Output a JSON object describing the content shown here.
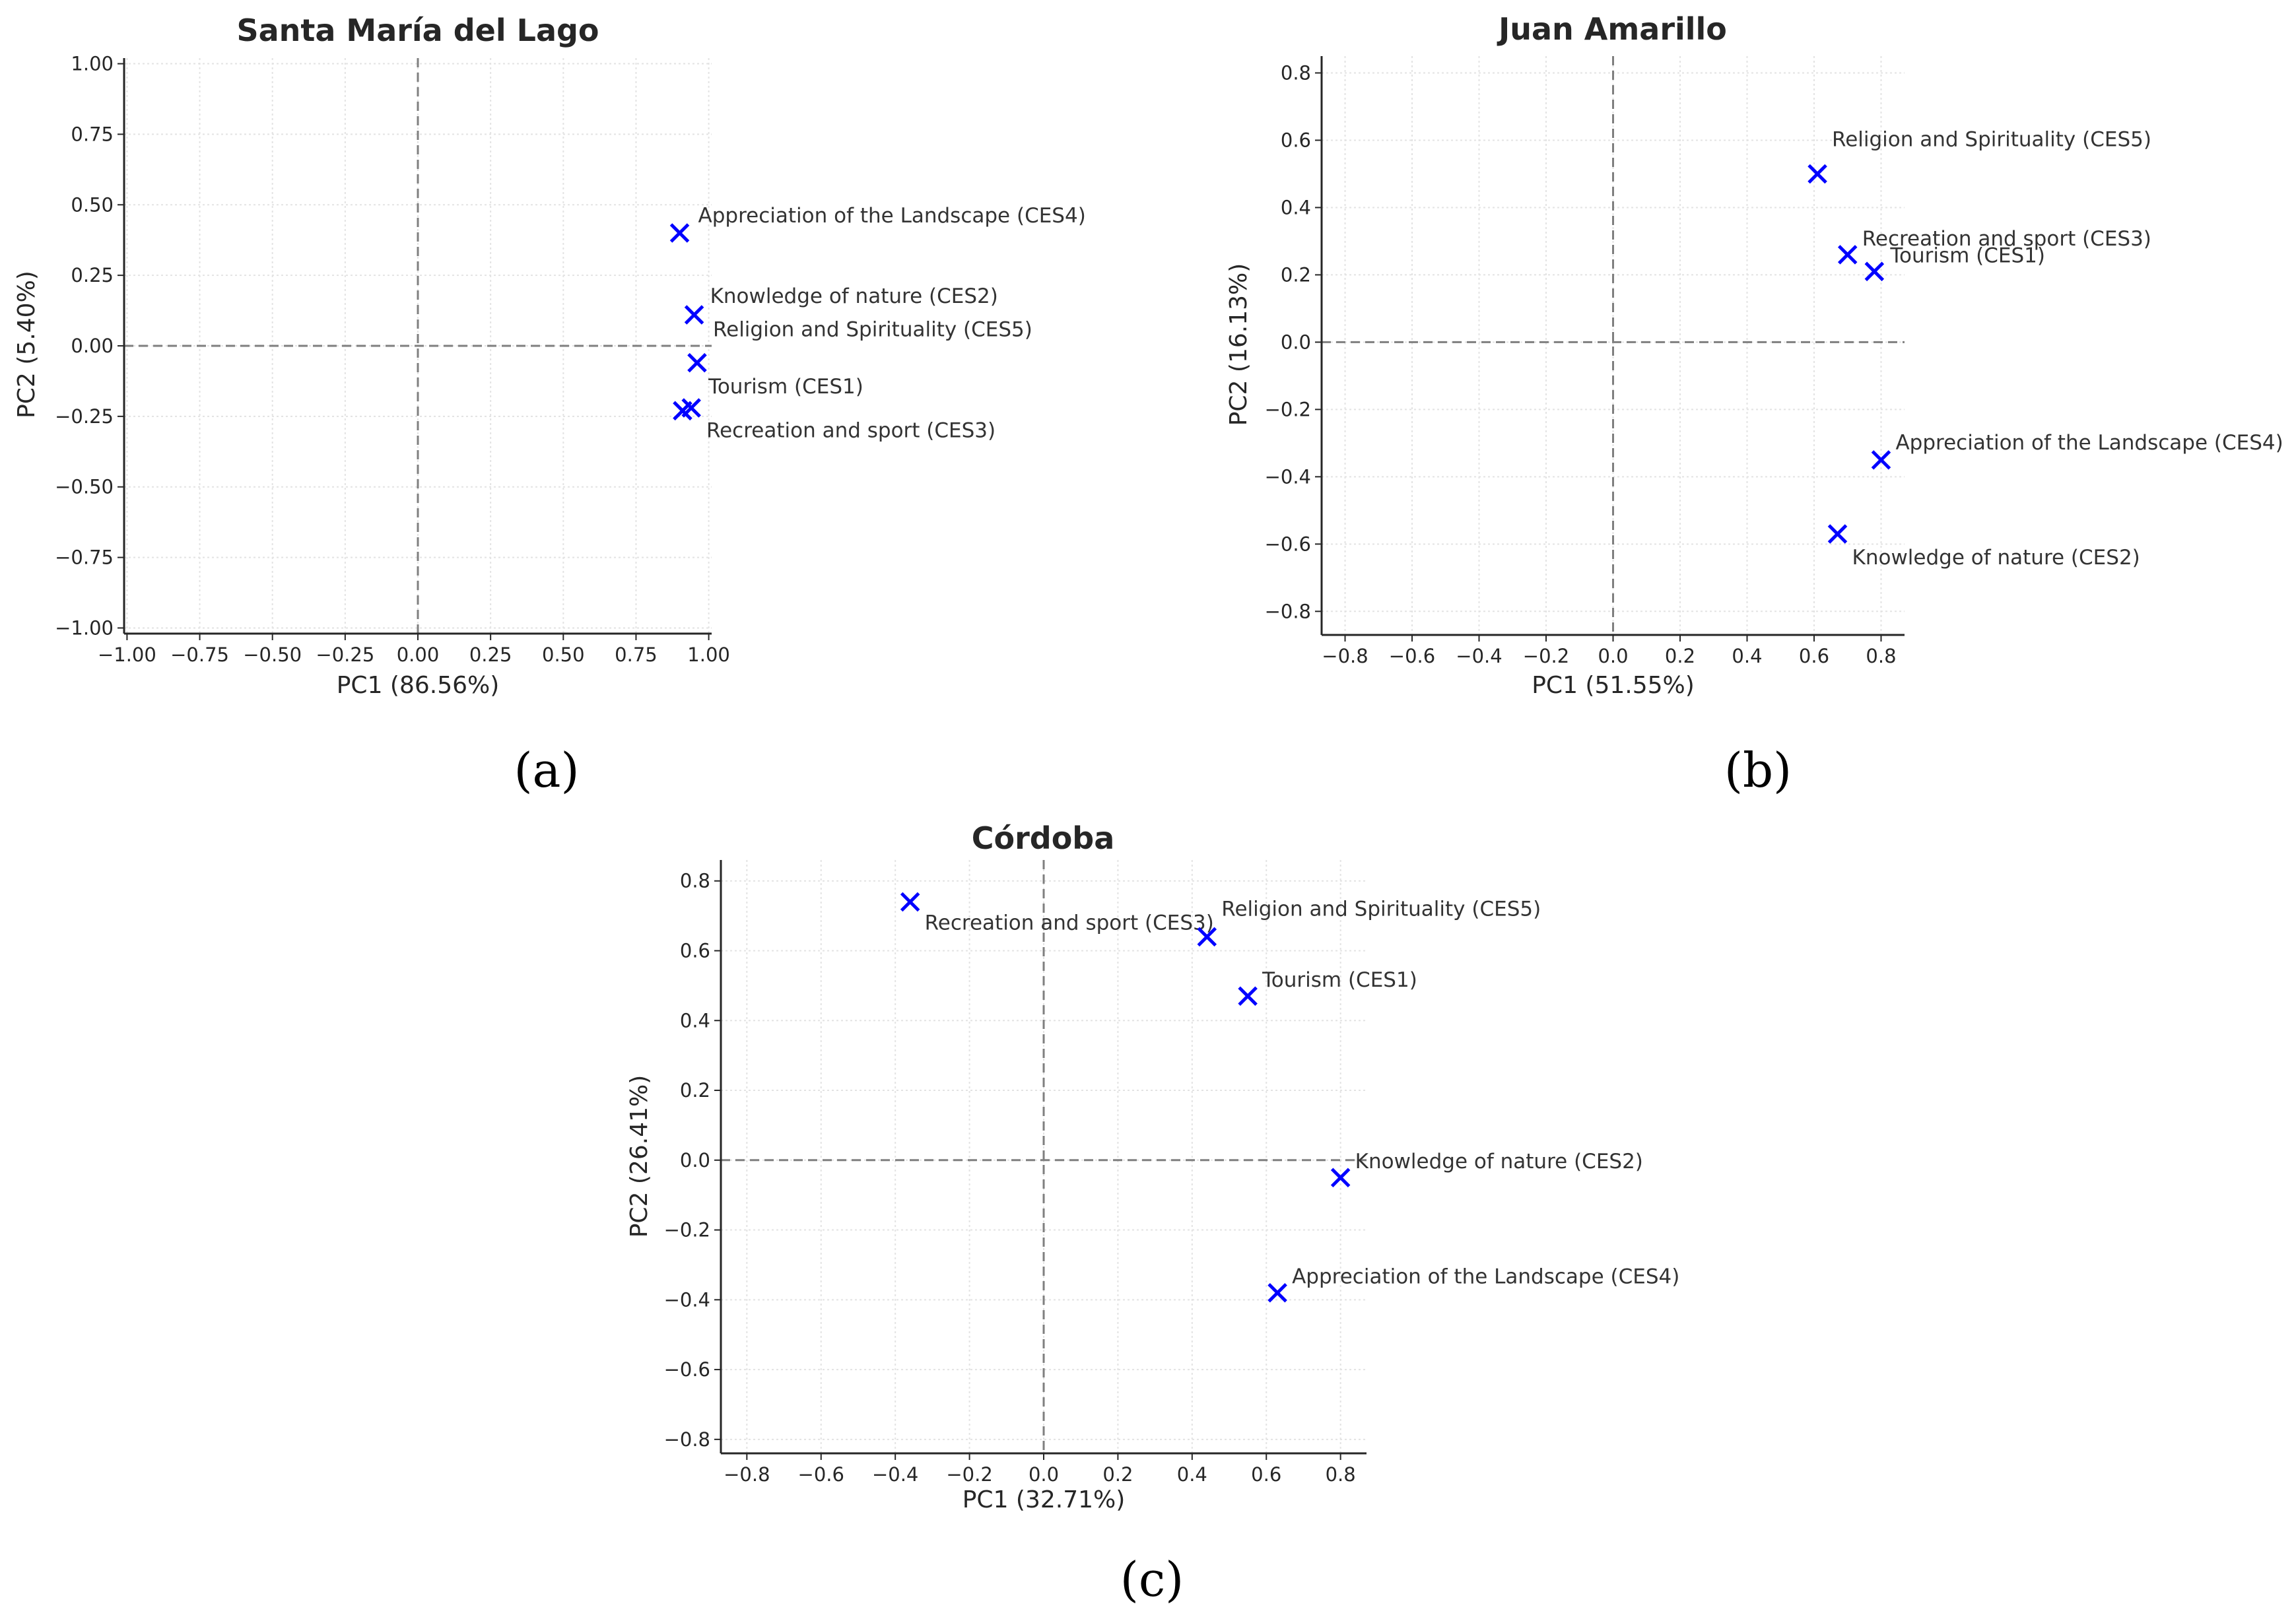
{
  "chart_data": [
    {
      "type": "scatter",
      "panel": "(a)",
      "title": "Santa María del Lago",
      "xlabel": "PC1 (86.56%)",
      "ylabel": "PC2 (5.40%)",
      "xlim": [
        -1.0,
        1.0
      ],
      "ylim": [
        -1.0,
        1.0
      ],
      "xticks": [
        "−1.00",
        "−0.75",
        "−0.50",
        "−0.25",
        "0.00",
        "0.25",
        "0.50",
        "0.75",
        "1.00"
      ],
      "yticks": [
        "1.00",
        "0.75",
        "0.50",
        "0.25",
        "0.00",
        "−0.25",
        "−0.50",
        "−0.75",
        "−1.00"
      ],
      "grid": true,
      "marker": "x",
      "marker_color": "#0000ff",
      "points": [
        {
          "label": "Appreciation of the Landscape (CES4)",
          "x": 0.9,
          "y": 0.4
        },
        {
          "label": "Knowledge of nature (CES2)",
          "x": 0.95,
          "y": 0.11
        },
        {
          "label": "Religion and Spirituality (CES5)",
          "x": 0.96,
          "y": -0.06
        },
        {
          "label": "Tourism (CES1)",
          "x": 0.94,
          "y": -0.22
        },
        {
          "label": "Recreation and sport (CES3)",
          "x": 0.91,
          "y": -0.23
        }
      ]
    },
    {
      "type": "scatter",
      "panel": "(b)",
      "title": "Juan Amarillo",
      "xlabel": "PC1 (51.55%)",
      "ylabel": "PC2 (16.13%)",
      "xlim": [
        -0.85,
        0.85
      ],
      "ylim": [
        -0.85,
        0.85
      ],
      "xticks": [
        "−0.8",
        "−0.6",
        "−0.4",
        "−0.2",
        "0.0",
        "0.2",
        "0.4",
        "0.6",
        "0.8"
      ],
      "yticks": [
        "0.8",
        "0.6",
        "0.4",
        "0.2",
        "0.0",
        "−0.2",
        "−0.4",
        "−0.6",
        "−0.8"
      ],
      "grid": true,
      "marker": "x",
      "marker_color": "#0000ff",
      "points": [
        {
          "label": "Religion and Spirituality (CES5)",
          "x": 0.61,
          "y": 0.5
        },
        {
          "label": "Recreation and sport (CES3)",
          "x": 0.7,
          "y": 0.26
        },
        {
          "label": "Tourism (CES1)",
          "x": 0.78,
          "y": 0.21
        },
        {
          "label": "Appreciation of the Landscape (CES4)",
          "x": 0.8,
          "y": -0.35
        },
        {
          "label": "Knowledge of nature (CES2)",
          "x": 0.67,
          "y": -0.57
        }
      ]
    },
    {
      "type": "scatter",
      "panel": "(c)",
      "title": "Córdoba",
      "xlabel": "PC1 (32.71%)",
      "ylabel": "PC2 (26.41%)",
      "xlim": [
        -0.85,
        0.85
      ],
      "ylim": [
        -0.85,
        0.85
      ],
      "xticks": [
        "−0.8",
        "−0.6",
        "−0.4",
        "−0.2",
        "0.0",
        "0.2",
        "0.4",
        "0.6",
        "0.8"
      ],
      "yticks": [
        "0.8",
        "0.6",
        "0.4",
        "0.2",
        "0.0",
        "−0.2",
        "−0.4",
        "−0.6",
        "−0.8"
      ],
      "grid": true,
      "marker": "x",
      "marker_color": "#0000ff",
      "points": [
        {
          "label": "Recreation and sport (CES3)",
          "x": -0.36,
          "y": 0.74
        },
        {
          "label": "Religion and Spirituality (CES5)",
          "x": 0.44,
          "y": 0.64
        },
        {
          "label": "Tourism (CES1)",
          "x": 0.55,
          "y": 0.47
        },
        {
          "label": "Knowledge of nature (CES2)",
          "x": 0.8,
          "y": -0.05
        },
        {
          "label": "Appreciation of the Landscape (CES4)",
          "x": 0.63,
          "y": -0.38
        }
      ]
    }
  ]
}
